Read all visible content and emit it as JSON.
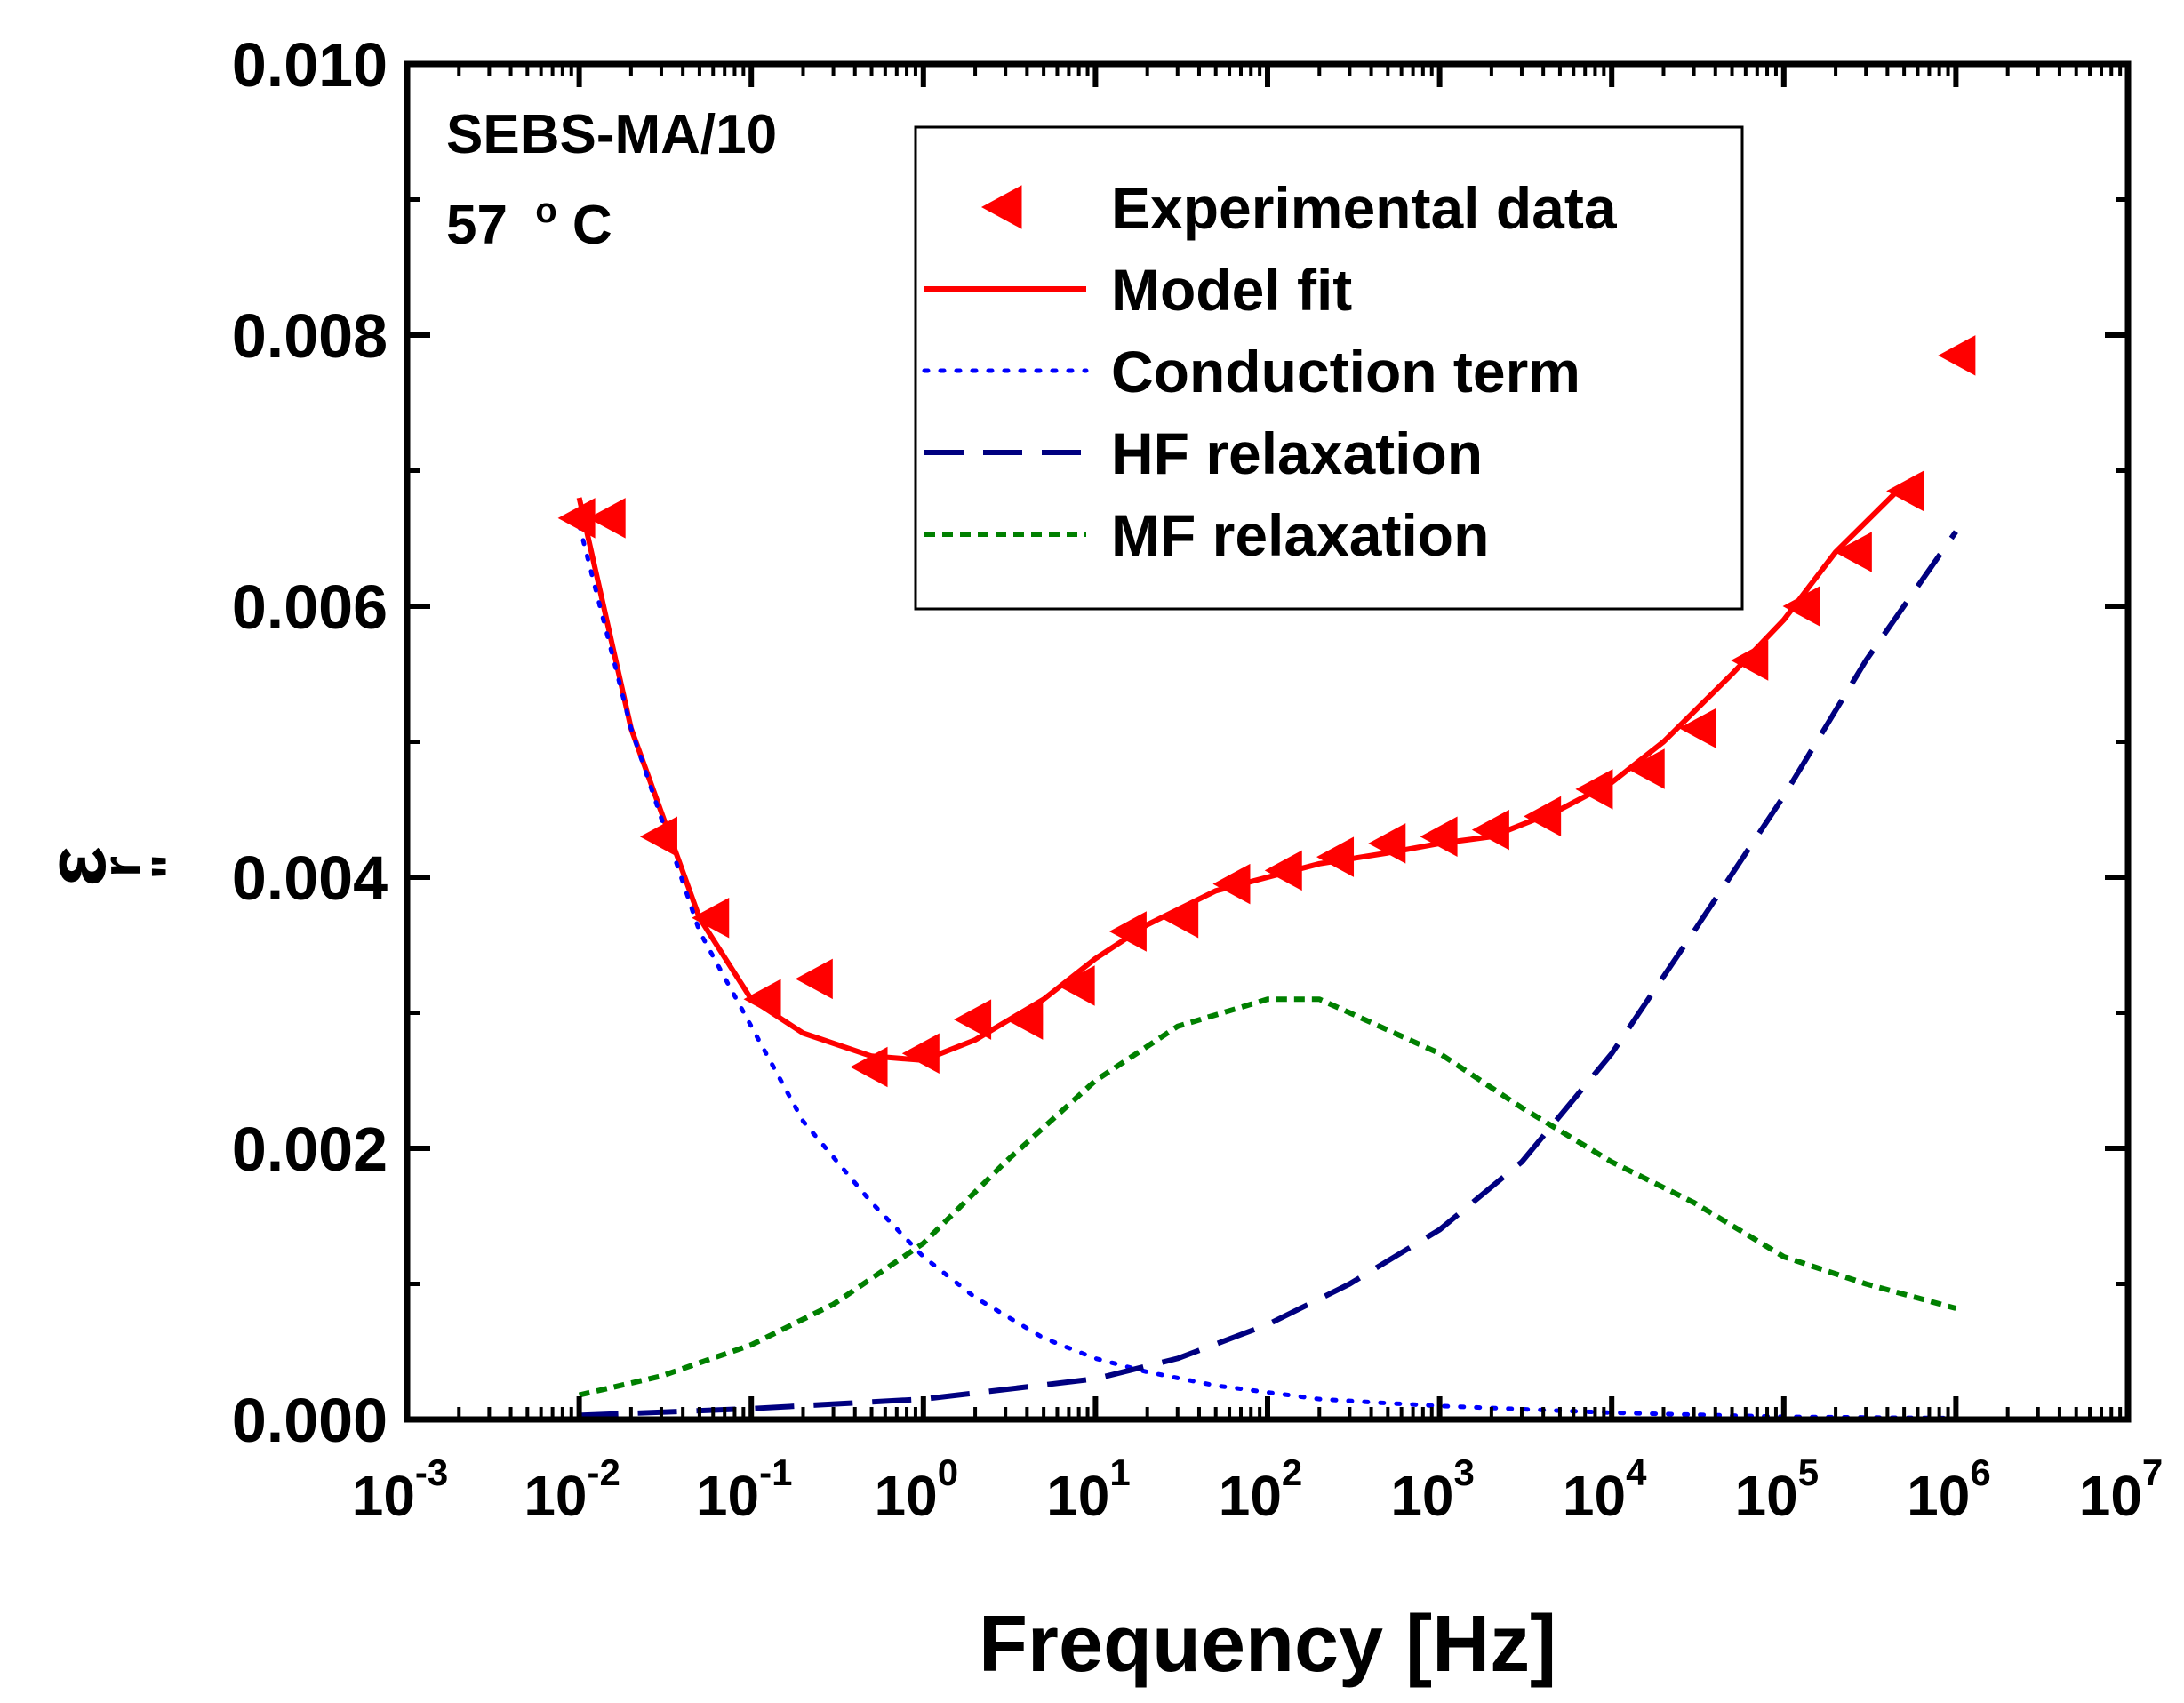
{
  "chart_data": {
    "type": "scatter",
    "xscale": "log",
    "xlabel": "Frequency [Hz]",
    "ylabel": {
      "symbol": "ε",
      "sub": "r",
      "sup": "\""
    },
    "xlim": [
      0.001,
      10000000
    ],
    "ylim": [
      0.0,
      0.01
    ],
    "xticks": [
      {
        "exp": -3,
        "base": "10",
        "sup": "-3"
      },
      {
        "exp": -2,
        "base": "10",
        "sup": "-2"
      },
      {
        "exp": -1,
        "base": "10",
        "sup": "-1"
      },
      {
        "exp": 0,
        "base": "10",
        "sup": "0"
      },
      {
        "exp": 1,
        "base": "10",
        "sup": "1"
      },
      {
        "exp": 2,
        "base": "10",
        "sup": "2"
      },
      {
        "exp": 3,
        "base": "10",
        "sup": "3"
      },
      {
        "exp": 4,
        "base": "10",
        "sup": "4"
      },
      {
        "exp": 5,
        "base": "10",
        "sup": "5"
      },
      {
        "exp": 6,
        "base": "10",
        "sup": "6"
      },
      {
        "exp": 7,
        "base": "10",
        "sup": "7"
      }
    ],
    "yticks": [
      {
        "value": 0.0,
        "label": "0.000"
      },
      {
        "value": 0.002,
        "label": "0.002"
      },
      {
        "value": 0.004,
        "label": "0.004"
      },
      {
        "value": 0.006,
        "label": "0.006"
      },
      {
        "value": 0.008,
        "label": "0.008"
      },
      {
        "value": 0.01,
        "label": "0.010"
      }
    ],
    "annotation": {
      "sample": "SEBS-MA/10",
      "temp_value": "57",
      "temp_unit_sup": "o",
      "temp_unit": "C"
    },
    "series": [
      {
        "name": "Experimental data",
        "style": "marker-left-triangle",
        "color": "#ff0000",
        "points": [
          [
            0.01,
            0.00665
          ],
          [
            0.015,
            0.00665
          ],
          [
            0.03,
            0.0043
          ],
          [
            0.06,
            0.0037
          ],
          [
            0.12,
            0.0031
          ],
          [
            0.24,
            0.00325
          ],
          [
            0.5,
            0.0026
          ],
          [
            1,
            0.0027
          ],
          [
            2,
            0.00295
          ],
          [
            4,
            0.00295
          ],
          [
            8,
            0.0032
          ],
          [
            16,
            0.0036
          ],
          [
            32,
            0.0037
          ],
          [
            64,
            0.00395
          ],
          [
            128,
            0.00405
          ],
          [
            256,
            0.00415
          ],
          [
            512,
            0.00425
          ],
          [
            1024,
            0.0043
          ],
          [
            2048,
            0.00435
          ],
          [
            4096,
            0.00445
          ],
          [
            8192,
            0.00465
          ],
          [
            16384,
            0.0048
          ],
          [
            32768,
            0.0051
          ],
          [
            65536,
            0.0056
          ],
          [
            131072,
            0.006
          ],
          [
            262144,
            0.0064
          ],
          [
            524288,
            0.00685
          ],
          [
            1048576,
            0.00785
          ]
        ]
      },
      {
        "name": "Model fit",
        "style": "solid",
        "color": "#ff0000",
        "points": [
          [
            0.01,
            0.0068
          ],
          [
            0.02,
            0.0051
          ],
          [
            0.05,
            0.0037
          ],
          [
            0.1,
            0.0031
          ],
          [
            0.2,
            0.00285
          ],
          [
            0.5,
            0.00268
          ],
          [
            1,
            0.00265
          ],
          [
            2,
            0.0028
          ],
          [
            5,
            0.0031
          ],
          [
            10,
            0.0034
          ],
          [
            20,
            0.00365
          ],
          [
            50,
            0.0039
          ],
          [
            100,
            0.004
          ],
          [
            200,
            0.0041
          ],
          [
            500,
            0.00418
          ],
          [
            1000,
            0.00425
          ],
          [
            2000,
            0.0043
          ],
          [
            5000,
            0.0045
          ],
          [
            10000,
            0.0047
          ],
          [
            20000,
            0.005
          ],
          [
            50000,
            0.0055
          ],
          [
            100000,
            0.0059
          ],
          [
            200000,
            0.0064
          ],
          [
            500000,
            0.0069
          ]
        ]
      },
      {
        "name": "Conduction term",
        "style": "dotted",
        "color": "#0000ff",
        "points": [
          [
            0.01,
            0.0066
          ],
          [
            0.02,
            0.0051
          ],
          [
            0.05,
            0.0036
          ],
          [
            0.1,
            0.0029
          ],
          [
            0.2,
            0.0022
          ],
          [
            0.5,
            0.0016
          ],
          [
            1,
            0.0012
          ],
          [
            2,
            0.0009
          ],
          [
            5,
            0.0006
          ],
          [
            10,
            0.00045
          ],
          [
            20,
            0.00035
          ],
          [
            50,
            0.00025
          ],
          [
            100,
            0.0002
          ],
          [
            200,
            0.00015
          ],
          [
            500,
            0.00012
          ],
          [
            1000,
            0.0001
          ],
          [
            10000,
            5e-05
          ],
          [
            100000,
            2e-05
          ],
          [
            1000000,
            1e-05
          ]
        ]
      },
      {
        "name": "HF relaxation",
        "style": "dashed",
        "color": "#000080",
        "points": [
          [
            0.01,
            3e-05
          ],
          [
            0.1,
            8e-05
          ],
          [
            1,
            0.00015
          ],
          [
            10,
            0.0003
          ],
          [
            30,
            0.00045
          ],
          [
            100,
            0.0007
          ],
          [
            300,
            0.001
          ],
          [
            1000,
            0.0014
          ],
          [
            3000,
            0.0019
          ],
          [
            10000,
            0.0027
          ],
          [
            30000,
            0.0036
          ],
          [
            100000,
            0.0046
          ],
          [
            300000,
            0.0056
          ],
          [
            1000000,
            0.00655
          ]
        ]
      },
      {
        "name": "MF relaxation",
        "style": "short-dashed",
        "color": "#008000",
        "points": [
          [
            0.01,
            0.00018
          ],
          [
            0.03,
            0.00032
          ],
          [
            0.1,
            0.00055
          ],
          [
            0.3,
            0.00085
          ],
          [
            1,
            0.0013
          ],
          [
            3,
            0.0019
          ],
          [
            10,
            0.0025
          ],
          [
            30,
            0.0029
          ],
          [
            100,
            0.0031
          ],
          [
            200,
            0.0031
          ],
          [
            300,
            0.003
          ],
          [
            1000,
            0.0027
          ],
          [
            3000,
            0.0023
          ],
          [
            10000,
            0.0019
          ],
          [
            30000,
            0.0016
          ],
          [
            100000,
            0.0012
          ],
          [
            300000,
            0.001
          ],
          [
            1000000,
            0.00082
          ]
        ]
      }
    ]
  }
}
